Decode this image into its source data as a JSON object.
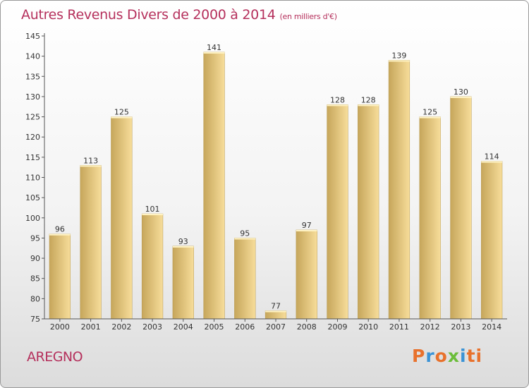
{
  "chart_data": {
    "type": "bar",
    "title": "Autres Revenus Divers de 2000 à 2014",
    "subtitle": "(en milliers d'€)",
    "categories": [
      "2000",
      "2001",
      "2002",
      "2003",
      "2004",
      "2005",
      "2006",
      "2007",
      "2008",
      "2009",
      "2010",
      "2011",
      "2012",
      "2013",
      "2014"
    ],
    "values": [
      96,
      113,
      125,
      101,
      93,
      141,
      95,
      77,
      97,
      128,
      128,
      139,
      125,
      130,
      114
    ],
    "ylim": [
      75,
      145
    ],
    "yticks": [
      75,
      80,
      85,
      90,
      95,
      100,
      105,
      110,
      115,
      120,
      125,
      130,
      135,
      140,
      145
    ],
    "grid": false,
    "colors": {
      "bar_light": "#f7dd9a",
      "bar_dark": "#c6a65b",
      "title": "#b5305c",
      "axis": "#555555"
    }
  },
  "place_name": "AREGNO",
  "logo": {
    "letters": [
      "P",
      "r",
      "o",
      "x",
      "i",
      "ti"
    ]
  }
}
